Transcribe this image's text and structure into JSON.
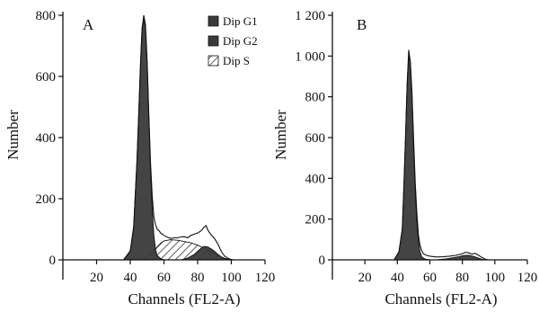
{
  "chart_data": [
    {
      "panel": "A",
      "type": "area",
      "xlabel": "Channels (FL2-A)",
      "ylabel": "Number",
      "xlim": [
        0,
        120
      ],
      "ylim": [
        0,
        800
      ],
      "xticks": [
        20,
        40,
        60,
        80,
        100,
        120
      ],
      "yticks": [
        0,
        200,
        400,
        600,
        800
      ],
      "ytick_labels": [
        "0",
        "200",
        "400",
        "600",
        "800"
      ],
      "grid": false,
      "legend_position": "top-right",
      "series": [
        {
          "name": "Dip G1",
          "fill": "#3a3a3a",
          "x": [
            36,
            40,
            42,
            44,
            45,
            46,
            47,
            48,
            49,
            50,
            51,
            52,
            53,
            54,
            55,
            56,
            58,
            60
          ],
          "values": [
            0,
            30,
            110,
            330,
            480,
            640,
            760,
            795,
            760,
            640,
            470,
            300,
            170,
            80,
            35,
            14,
            4,
            0
          ]
        },
        {
          "name": "Dip G2",
          "fill": "#3a3a3a",
          "x": [
            70,
            74,
            78,
            80,
            82,
            84,
            86,
            88,
            90,
            92,
            94,
            96,
            98,
            100
          ],
          "values": [
            0,
            6,
            18,
            28,
            38,
            44,
            42,
            36,
            28,
            18,
            10,
            4,
            1,
            0
          ]
        },
        {
          "name": "Dip S",
          "fill": "hatch",
          "x": [
            48,
            50,
            52,
            54,
            56,
            58,
            60,
            64,
            68,
            72,
            76,
            80,
            84,
            88,
            92,
            96,
            100
          ],
          "values": [
            0,
            8,
            18,
            30,
            42,
            54,
            62,
            66,
            64,
            60,
            56,
            48,
            38,
            26,
            14,
            5,
            0
          ]
        }
      ],
      "raw_histogram": {
        "x": [
          36,
          40,
          42,
          44,
          46,
          47,
          48,
          49,
          50,
          51,
          52,
          53,
          54,
          55,
          56,
          57,
          58,
          60,
          62,
          64,
          66,
          68,
          70,
          72,
          74,
          76,
          78,
          80,
          82,
          84,
          85,
          86,
          87,
          88,
          90,
          92,
          94,
          96,
          98,
          100,
          102
        ],
        "values": [
          0,
          28,
          105,
          320,
          620,
          745,
          800,
          770,
          650,
          480,
          320,
          210,
          140,
          115,
          100,
          96,
          88,
          80,
          74,
          70,
          72,
          72,
          75,
          76,
          72,
          80,
          84,
          88,
          95,
          108,
          112,
          98,
          90,
          82,
          70,
          52,
          28,
          12,
          5,
          1,
          0
        ]
      }
    },
    {
      "panel": "B",
      "type": "area",
      "xlabel": "Channels (FL2-A)",
      "ylabel": "Number",
      "xlim": [
        0,
        120
      ],
      "ylim": [
        0,
        1200
      ],
      "xticks": [
        20,
        40,
        60,
        80,
        100,
        120
      ],
      "yticks": [
        0,
        200,
        400,
        600,
        800,
        1000,
        1200
      ],
      "ytick_labels": [
        "0",
        "200",
        "400",
        "600",
        "800",
        "1 000",
        "1 200"
      ],
      "grid": false,
      "series": [
        {
          "fill": "#3a3a3a",
          "x": [
            38,
            41,
            43,
            44,
            45,
            46,
            47,
            48,
            49,
            50,
            51,
            52,
            53,
            54,
            55,
            57,
            60
          ],
          "values": [
            0,
            40,
            150,
            360,
            600,
            860,
            1010,
            960,
            800,
            560,
            340,
            190,
            90,
            40,
            15,
            4,
            0
          ]
        },
        {
          "fill": "#3a3a3a",
          "x": [
            64,
            70,
            74,
            78,
            80,
            82,
            84,
            86,
            88,
            90,
            92,
            94
          ],
          "values": [
            0,
            5,
            10,
            16,
            20,
            22,
            22,
            19,
            14,
            8,
            3,
            0
          ]
        }
      ],
      "raw_histogram": {
        "x": [
          38,
          41,
          43,
          44,
          45,
          46,
          47,
          48,
          49,
          50,
          51,
          52,
          53,
          54,
          55,
          56,
          58,
          60,
          64,
          68,
          72,
          76,
          78,
          80,
          82,
          84,
          86,
          88,
          90,
          92,
          94,
          96
        ],
        "values": [
          0,
          40,
          150,
          360,
          600,
          860,
          1030,
          970,
          820,
          590,
          380,
          230,
          120,
          70,
          45,
          30,
          22,
          18,
          14,
          15,
          18,
          22,
          26,
          30,
          38,
          34,
          28,
          32,
          22,
          12,
          4,
          0
        ]
      }
    }
  ]
}
